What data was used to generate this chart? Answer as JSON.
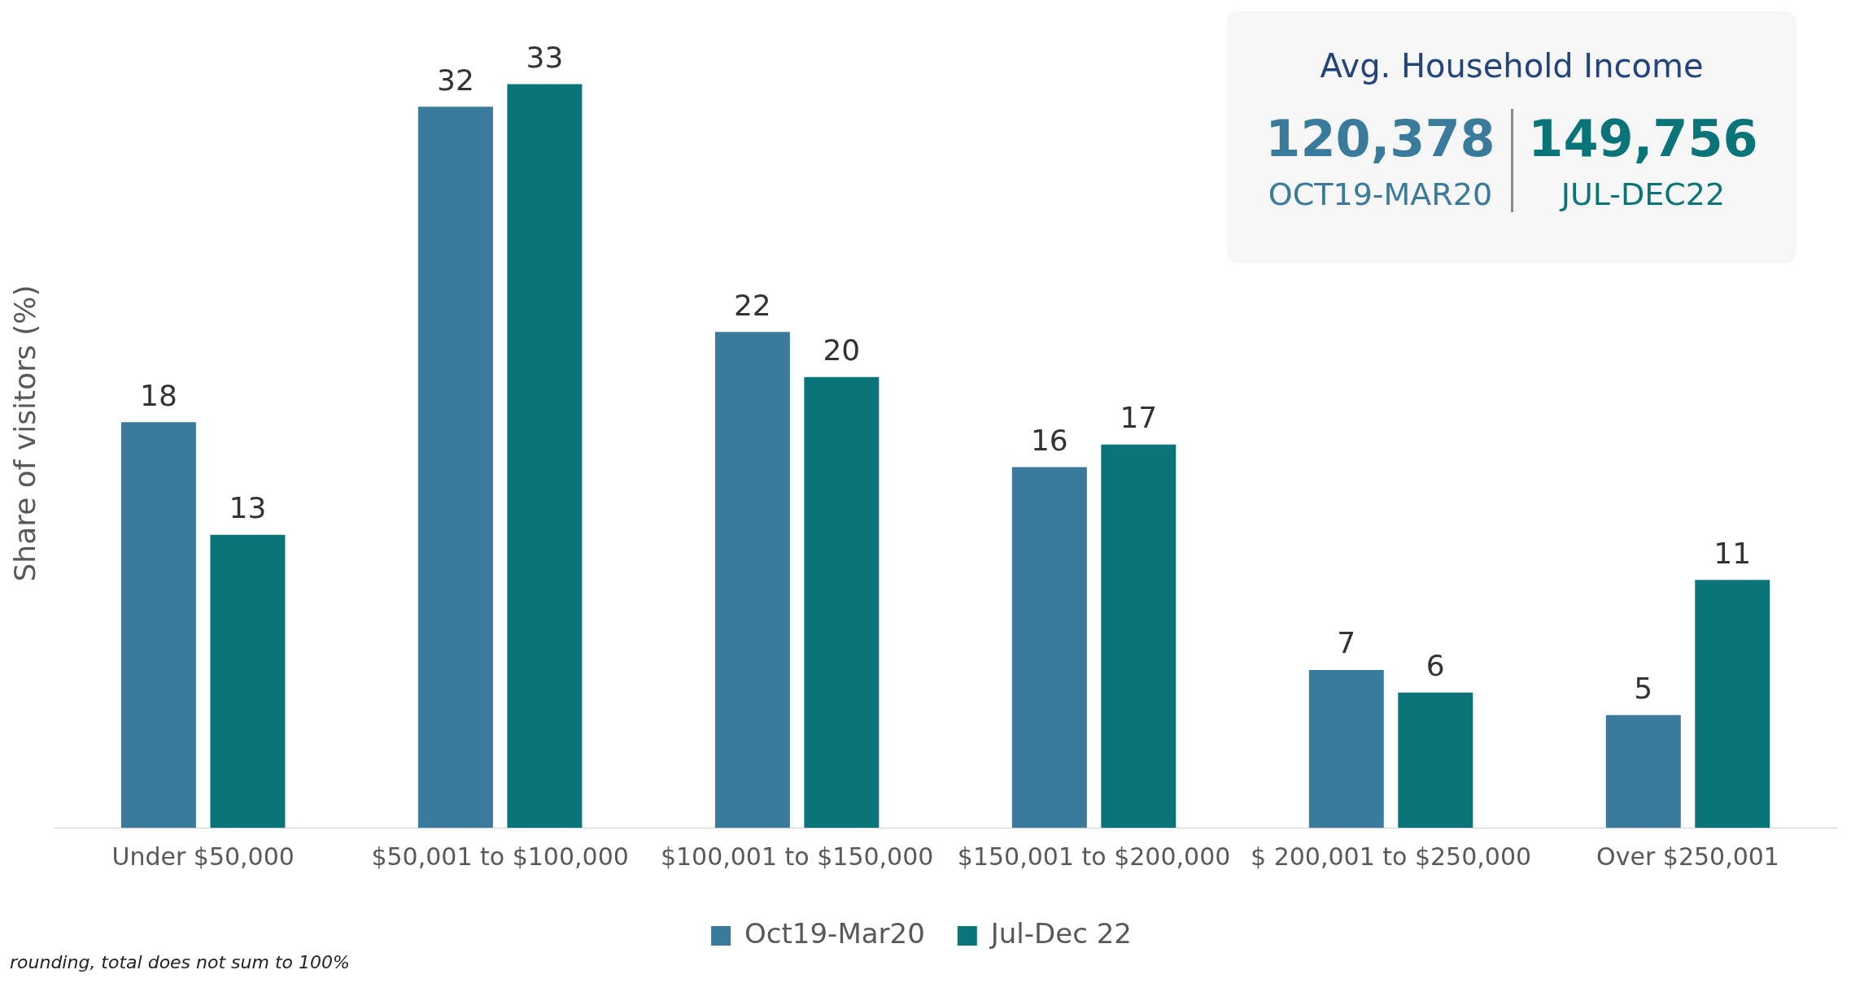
{
  "chart_data": {
    "type": "bar",
    "ylabel": "Share of visitors (%)",
    "categories": [
      "Under $50,000",
      "$50,001 to $100,000",
      "$100,001 to $150,000",
      "$150,001 to $200,000",
      "$ 200,001 to $250,000",
      "Over $250,001"
    ],
    "series": [
      {
        "name": "Oct19-Mar20",
        "color": "#3a7a9b",
        "values": [
          18,
          32,
          22,
          16,
          7,
          5
        ]
      },
      {
        "name": "Jul-Dec 22",
        "color": "#0b7478",
        "values": [
          13,
          33,
          20,
          17,
          6,
          11
        ]
      }
    ],
    "data_labels": true,
    "grid": false,
    "legend": "bottom",
    "annotations": [
      "rounding, total does not sum to 100%",
      "Avg. Household Income",
      "120,378",
      "OCT19-MAR20",
      "149,756",
      "JUL-DEC22"
    ]
  }
}
